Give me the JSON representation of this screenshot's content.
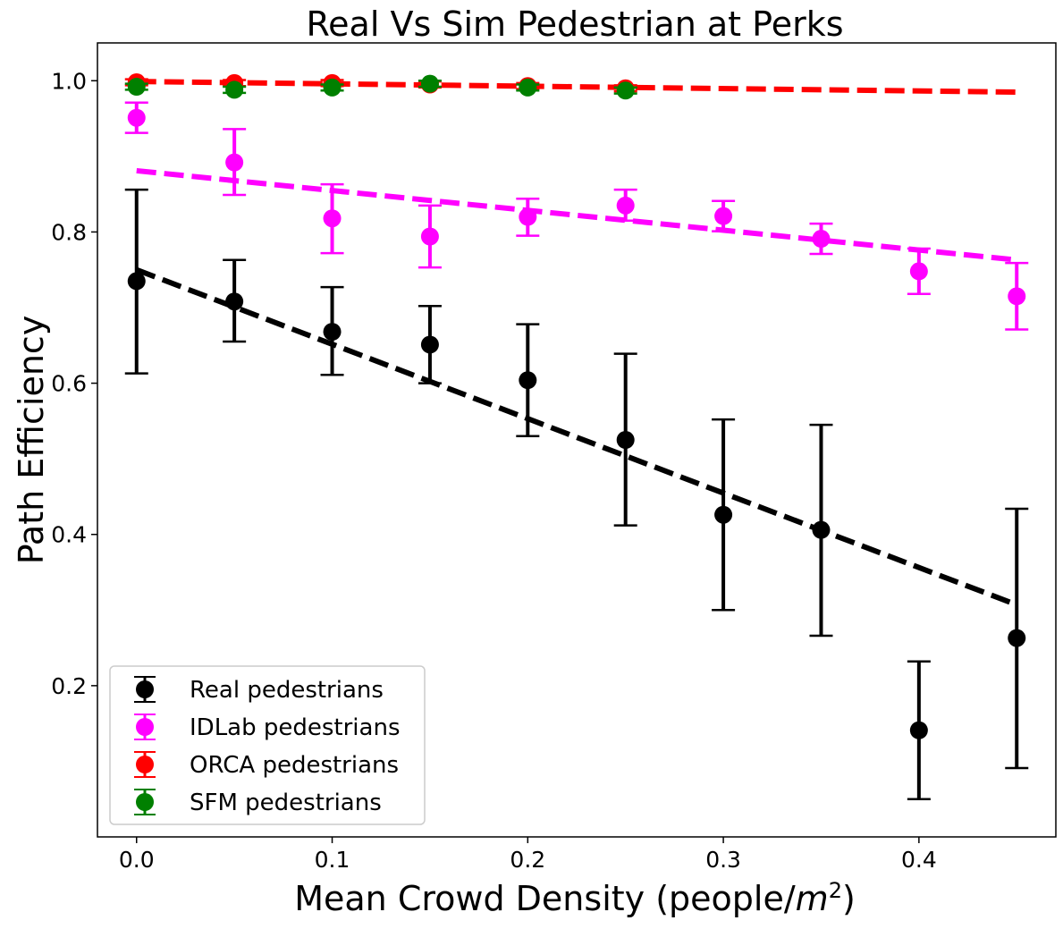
{
  "chart_data": {
    "type": "scatter",
    "title": "Real Vs Sim Pedestrian at Perks",
    "xlabel": "Mean Crowd Density (people/",
    "xlabel_unit_base": "m",
    "xlabel_unit_exp": "2",
    "xlabel_close": ")",
    "ylabel": "Path Efficiency",
    "xlim": [
      -0.02,
      0.47
    ],
    "ylim": [
      0.0,
      1.05
    ],
    "x_ticks": [
      0.0,
      0.1,
      0.2,
      0.3,
      0.4
    ],
    "x_tick_labels": [
      "0.0",
      "0.1",
      "0.2",
      "0.3",
      "0.4"
    ],
    "y_ticks": [
      0.2,
      0.4,
      0.6,
      0.8,
      1.0
    ],
    "y_tick_labels": [
      "0.2",
      "0.4",
      "0.6",
      "0.8",
      "1.0"
    ],
    "grid": false,
    "legend_position": "lower-left",
    "series": [
      {
        "name": "Real pedestrians",
        "color": "#000000",
        "points": [
          {
            "x": 0.0,
            "y": 0.735,
            "lo": 0.613,
            "hi": 0.856
          },
          {
            "x": 0.05,
            "y": 0.708,
            "lo": 0.655,
            "hi": 0.763
          },
          {
            "x": 0.1,
            "y": 0.668,
            "lo": 0.611,
            "hi": 0.727
          },
          {
            "x": 0.15,
            "y": 0.651,
            "lo": 0.6,
            "hi": 0.702
          },
          {
            "x": 0.2,
            "y": 0.604,
            "lo": 0.53,
            "hi": 0.678
          },
          {
            "x": 0.25,
            "y": 0.525,
            "lo": 0.412,
            "hi": 0.639
          },
          {
            "x": 0.3,
            "y": 0.426,
            "lo": 0.3,
            "hi": 0.552
          },
          {
            "x": 0.35,
            "y": 0.406,
            "lo": 0.266,
            "hi": 0.545
          },
          {
            "x": 0.4,
            "y": 0.141,
            "lo": 0.05,
            "hi": 0.232
          },
          {
            "x": 0.45,
            "y": 0.263,
            "lo": 0.091,
            "hi": 0.434
          }
        ],
        "trend": {
          "x": [
            0.0,
            0.45
          ],
          "y": [
            0.75,
            0.307
          ]
        }
      },
      {
        "name": "IDLab pedestrians",
        "color": "#ff00ff",
        "points": [
          {
            "x": 0.0,
            "y": 0.951,
            "lo": 0.931,
            "hi": 0.971
          },
          {
            "x": 0.05,
            "y": 0.892,
            "lo": 0.849,
            "hi": 0.936
          },
          {
            "x": 0.1,
            "y": 0.818,
            "lo": 0.772,
            "hi": 0.863
          },
          {
            "x": 0.15,
            "y": 0.794,
            "lo": 0.753,
            "hi": 0.835
          },
          {
            "x": 0.2,
            "y": 0.82,
            "lo": 0.795,
            "hi": 0.844
          },
          {
            "x": 0.25,
            "y": 0.835,
            "lo": 0.815,
            "hi": 0.856
          },
          {
            "x": 0.3,
            "y": 0.821,
            "lo": 0.801,
            "hi": 0.841
          },
          {
            "x": 0.35,
            "y": 0.791,
            "lo": 0.771,
            "hi": 0.811
          },
          {
            "x": 0.4,
            "y": 0.748,
            "lo": 0.718,
            "hi": 0.778
          },
          {
            "x": 0.45,
            "y": 0.715,
            "lo": 0.671,
            "hi": 0.759
          }
        ],
        "trend": {
          "x": [
            0.0,
            0.45
          ],
          "y": [
            0.881,
            0.763
          ]
        }
      },
      {
        "name": "ORCA pedestrians",
        "color": "#ff0000",
        "points": [
          {
            "x": 0.0,
            "y": 0.998,
            "lo": 0.994,
            "hi": 1.002
          },
          {
            "x": 0.05,
            "y": 0.997,
            "lo": 0.993,
            "hi": 1.001
          },
          {
            "x": 0.1,
            "y": 0.997,
            "lo": 0.993,
            "hi": 1.001
          },
          {
            "x": 0.15,
            "y": 0.995,
            "lo": 0.991,
            "hi": 0.999
          },
          {
            "x": 0.2,
            "y": 0.993,
            "lo": 0.989,
            "hi": 0.997
          },
          {
            "x": 0.25,
            "y": 0.99,
            "lo": 0.986,
            "hi": 0.994
          }
        ],
        "trend": {
          "x": [
            0.0,
            0.45
          ],
          "y": [
            0.999,
            0.985
          ]
        }
      },
      {
        "name": "SFM pedestrians",
        "color": "#008000",
        "points": [
          {
            "x": 0.0,
            "y": 0.992,
            "lo": 0.988,
            "hi": 0.996
          },
          {
            "x": 0.05,
            "y": 0.988,
            "lo": 0.984,
            "hi": 0.992
          },
          {
            "x": 0.1,
            "y": 0.991,
            "lo": 0.987,
            "hi": 0.995
          },
          {
            "x": 0.15,
            "y": 0.996,
            "lo": 0.992,
            "hi": 1.0
          },
          {
            "x": 0.2,
            "y": 0.991,
            "lo": 0.987,
            "hi": 0.995
          },
          {
            "x": 0.25,
            "y": 0.987,
            "lo": 0.983,
            "hi": 0.991
          }
        ]
      }
    ]
  }
}
